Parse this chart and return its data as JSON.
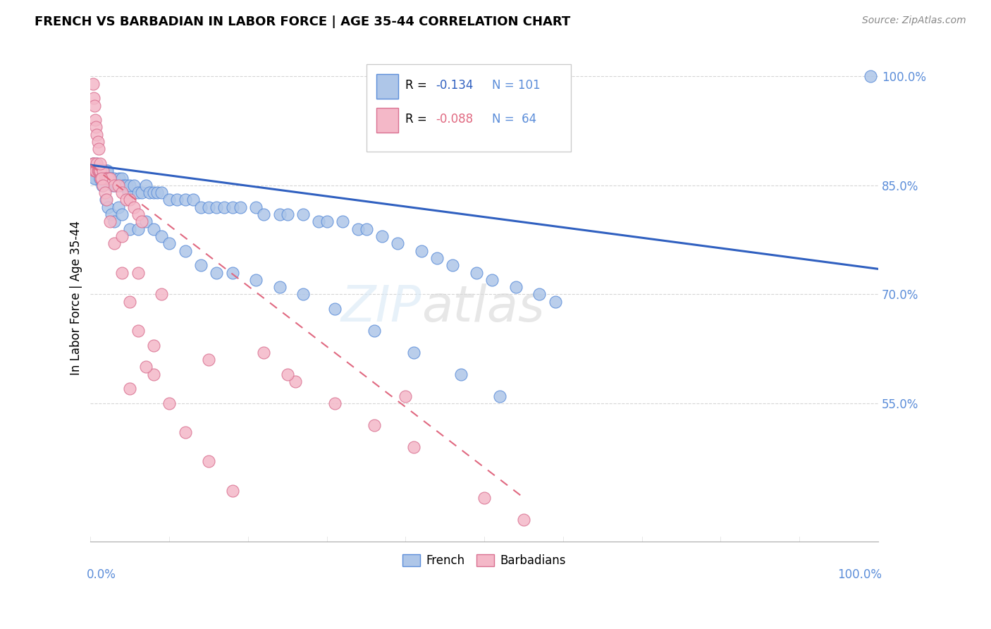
{
  "title": "FRENCH VS BARBADIAN IN LABOR FORCE | AGE 35-44 CORRELATION CHART",
  "source_text": "Source: ZipAtlas.com",
  "ylabel": "In Labor Force | Age 35-44",
  "watermark_text": "ZIP atlas",
  "french_color": "#aec6e8",
  "french_edge_color": "#5b8dd9",
  "barbadian_color": "#f4b8c8",
  "barbadian_edge_color": "#d97090",
  "french_line_color": "#3060c0",
  "barbadian_line_color": "#e06880",
  "background_color": "#ffffff",
  "grid_color": "#cccccc",
  "ytick_color": "#5b8dd9",
  "xlim": [
    0.0,
    1.0
  ],
  "ylim": [
    0.36,
    1.03
  ],
  "ytick_vals": [
    1.0,
    0.85,
    0.7,
    0.55
  ],
  "ytick_labels": [
    "100.0%",
    "85.0%",
    "70.0%",
    "55.0%"
  ],
  "legend_r1": "R = ",
  "legend_r1_val": "-0.134",
  "legend_n1": "N = 101",
  "legend_r2": "R = ",
  "legend_r2_val": "-0.088",
  "legend_n2": "N =  64",
  "french_trend_x": [
    0.0,
    1.0
  ],
  "french_trend_y": [
    0.878,
    0.735
  ],
  "barbadian_trend_x": [
    0.0,
    0.55
  ],
  "barbadian_trend_y": [
    0.878,
    0.42
  ],
  "french_x": [
    0.003,
    0.004,
    0.005,
    0.006,
    0.007,
    0.008,
    0.009,
    0.01,
    0.011,
    0.012,
    0.013,
    0.014,
    0.015,
    0.016,
    0.017,
    0.018,
    0.019,
    0.02,
    0.021,
    0.022,
    0.024,
    0.025,
    0.027,
    0.028,
    0.03,
    0.032,
    0.034,
    0.036,
    0.038,
    0.04,
    0.042,
    0.045,
    0.048,
    0.05,
    0.055,
    0.06,
    0.065,
    0.07,
    0.075,
    0.08,
    0.085,
    0.09,
    0.1,
    0.11,
    0.12,
    0.13,
    0.14,
    0.15,
    0.16,
    0.17,
    0.18,
    0.19,
    0.21,
    0.22,
    0.24,
    0.25,
    0.27,
    0.29,
    0.3,
    0.32,
    0.34,
    0.35,
    0.37,
    0.39,
    0.42,
    0.44,
    0.46,
    0.49,
    0.51,
    0.54,
    0.57,
    0.59,
    0.005,
    0.008,
    0.012,
    0.015,
    0.019,
    0.022,
    0.026,
    0.03,
    0.035,
    0.04,
    0.05,
    0.06,
    0.07,
    0.08,
    0.09,
    0.1,
    0.12,
    0.14,
    0.16,
    0.18,
    0.21,
    0.24,
    0.27,
    0.31,
    0.36,
    0.41,
    0.47,
    0.52,
    0.99
  ],
  "french_y": [
    0.88,
    0.87,
    0.87,
    0.87,
    0.86,
    0.88,
    0.87,
    0.87,
    0.86,
    0.87,
    0.86,
    0.86,
    0.86,
    0.87,
    0.87,
    0.87,
    0.86,
    0.87,
    0.87,
    0.86,
    0.86,
    0.86,
    0.86,
    0.85,
    0.86,
    0.85,
    0.85,
    0.86,
    0.85,
    0.86,
    0.85,
    0.85,
    0.84,
    0.85,
    0.85,
    0.84,
    0.84,
    0.85,
    0.84,
    0.84,
    0.84,
    0.84,
    0.83,
    0.83,
    0.83,
    0.83,
    0.82,
    0.82,
    0.82,
    0.82,
    0.82,
    0.82,
    0.82,
    0.81,
    0.81,
    0.81,
    0.81,
    0.8,
    0.8,
    0.8,
    0.79,
    0.79,
    0.78,
    0.77,
    0.76,
    0.75,
    0.74,
    0.73,
    0.72,
    0.71,
    0.7,
    0.69,
    0.86,
    0.87,
    0.86,
    0.85,
    0.83,
    0.82,
    0.81,
    0.8,
    0.82,
    0.81,
    0.79,
    0.79,
    0.8,
    0.79,
    0.78,
    0.77,
    0.76,
    0.74,
    0.73,
    0.73,
    0.72,
    0.71,
    0.7,
    0.68,
    0.65,
    0.62,
    0.59,
    0.56,
    1.0
  ],
  "barbadian_x": [
    0.003,
    0.004,
    0.005,
    0.006,
    0.007,
    0.008,
    0.009,
    0.01,
    0.011,
    0.012,
    0.013,
    0.015,
    0.016,
    0.018,
    0.02,
    0.022,
    0.025,
    0.03,
    0.035,
    0.04,
    0.045,
    0.05,
    0.055,
    0.06,
    0.065,
    0.003,
    0.004,
    0.005,
    0.006,
    0.007,
    0.008,
    0.009,
    0.01,
    0.012,
    0.014,
    0.016,
    0.018,
    0.02,
    0.025,
    0.03,
    0.04,
    0.05,
    0.06,
    0.08,
    0.1,
    0.12,
    0.15,
    0.18,
    0.22,
    0.26,
    0.31,
    0.36,
    0.41,
    0.5,
    0.05,
    0.08,
    0.15,
    0.25,
    0.4,
    0.55,
    0.04,
    0.06,
    0.07,
    0.09
  ],
  "barbadian_y": [
    0.88,
    0.88,
    0.87,
    0.87,
    0.87,
    0.88,
    0.87,
    0.87,
    0.87,
    0.87,
    0.86,
    0.86,
    0.87,
    0.86,
    0.86,
    0.86,
    0.86,
    0.85,
    0.85,
    0.84,
    0.83,
    0.83,
    0.82,
    0.81,
    0.8,
    0.99,
    0.97,
    0.96,
    0.94,
    0.93,
    0.92,
    0.91,
    0.9,
    0.88,
    0.86,
    0.85,
    0.84,
    0.83,
    0.8,
    0.77,
    0.73,
    0.69,
    0.65,
    0.59,
    0.55,
    0.51,
    0.47,
    0.43,
    0.62,
    0.58,
    0.55,
    0.52,
    0.49,
    0.42,
    0.57,
    0.63,
    0.61,
    0.59,
    0.56,
    0.39,
    0.78,
    0.73,
    0.6,
    0.7
  ]
}
